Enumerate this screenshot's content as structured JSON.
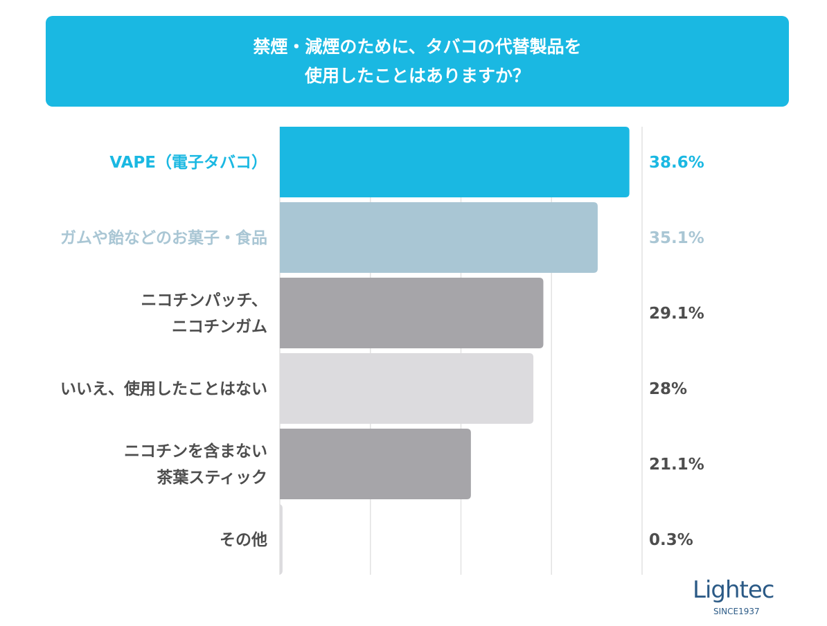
{
  "header": {
    "title_line1": "禁煙・減煙のために、タバコの代替製品を",
    "title_line2": "使用したことはありますか？"
  },
  "chart_data": {
    "type": "bar",
    "orientation": "horizontal",
    "title": "禁煙・減煙のために、タバコの代替製品を使用したことはありますか？",
    "categories": [
      [
        "VAPE（電子タバコ）"
      ],
      [
        "ガムや飴などのお菓子・食品"
      ],
      [
        "ニコチンパッチ、",
        "ニコチンガム"
      ],
      [
        "いいえ、使用したことはない"
      ],
      [
        "ニコチンを含まない",
        "茶葉スティック"
      ],
      [
        "その他"
      ]
    ],
    "values": [
      38.6,
      35.1,
      29.1,
      28,
      21.1,
      0.3
    ],
    "value_labels": [
      "38.6%",
      "35.1%",
      "29.1%",
      "28%",
      "21.1%",
      "0.3%"
    ],
    "bar_colors": [
      "#1ab8e2",
      "#a9c6d4",
      "#a6a5a9",
      "#dcdbde",
      "#a6a5a9",
      "#dcdbde"
    ],
    "label_colors": [
      "#1ab8e2",
      "#a9c6d4",
      "#4d4d4d",
      "#4d4d4d",
      "#4d4d4d",
      "#4d4d4d"
    ],
    "xlim": [
      0,
      40
    ],
    "grid": true,
    "xlabel": "",
    "ylabel": ""
  },
  "logo": {
    "word": "Lightec",
    "since": "SINCE1937"
  }
}
